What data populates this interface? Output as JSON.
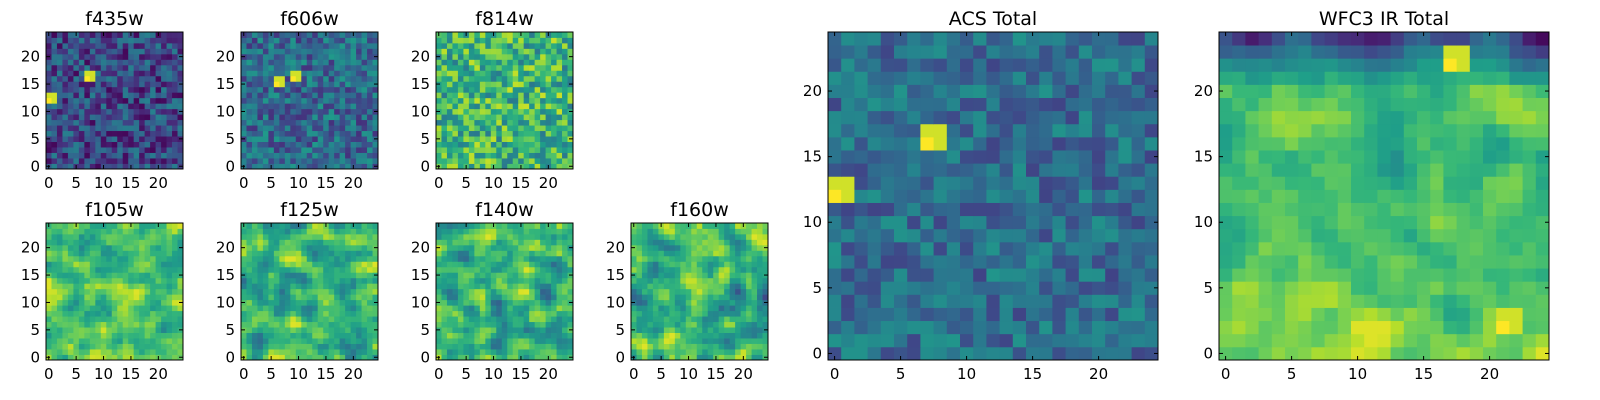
{
  "chart_data": [
    {
      "type": "heatmap",
      "title": "f435w",
      "colormap": "viridis",
      "extent": [
        -0.5,
        24.5,
        -0.5,
        24.5
      ],
      "xticks": [
        0,
        5,
        10,
        15,
        20
      ],
      "yticks": [
        0,
        5,
        10,
        15,
        20
      ],
      "features": [
        {
          "label": "bright source",
          "x": 7,
          "y": 16,
          "value": 1.0
        },
        {
          "label": "bright source",
          "x": 0,
          "y": 12,
          "value": 1.0
        }
      ]
    },
    {
      "type": "heatmap",
      "title": "f606w",
      "colormap": "viridis",
      "extent": [
        -0.5,
        24.5,
        -0.5,
        24.5
      ],
      "xticks": [
        0,
        5,
        10,
        15,
        20
      ],
      "yticks": [
        0,
        5,
        10,
        15,
        20
      ],
      "features": [
        {
          "label": "bright source",
          "x": 6,
          "y": 15,
          "value": 1.0
        },
        {
          "label": "bright source",
          "x": 9,
          "y": 16,
          "value": 1.0
        }
      ]
    },
    {
      "type": "heatmap",
      "title": "f814w",
      "colormap": "viridis",
      "extent": [
        -0.5,
        24.5,
        -0.5,
        24.5
      ],
      "xticks": [
        0,
        5,
        10,
        15,
        20
      ],
      "yticks": [
        0,
        5,
        10,
        15,
        20
      ]
    },
    {
      "type": "heatmap",
      "title": "f105w",
      "colormap": "viridis",
      "extent": [
        -0.5,
        24.5,
        -0.5,
        24.5
      ],
      "xticks": [
        0,
        5,
        10,
        15,
        20
      ],
      "yticks": [
        0,
        5,
        10,
        15,
        20
      ]
    },
    {
      "type": "heatmap",
      "title": "f125w",
      "colormap": "viridis",
      "extent": [
        -0.5,
        24.5,
        -0.5,
        24.5
      ],
      "xticks": [
        0,
        5,
        10,
        15,
        20
      ],
      "yticks": [
        0,
        5,
        10,
        15,
        20
      ]
    },
    {
      "type": "heatmap",
      "title": "f140w",
      "colormap": "viridis",
      "extent": [
        -0.5,
        24.5,
        -0.5,
        24.5
      ],
      "xticks": [
        0,
        5,
        10,
        15,
        20
      ],
      "yticks": [
        0,
        5,
        10,
        15,
        20
      ]
    },
    {
      "type": "heatmap",
      "title": "f160w",
      "colormap": "viridis",
      "extent": [
        -0.5,
        24.5,
        -0.5,
        24.5
      ],
      "xticks": [
        0,
        5,
        10,
        15,
        20
      ],
      "yticks": [
        0,
        5,
        10,
        15,
        20
      ]
    },
    {
      "type": "heatmap",
      "title": "ACS Total",
      "colormap": "viridis",
      "extent": [
        -0.5,
        24.5,
        -0.5,
        24.5
      ],
      "xticks": [
        0,
        5,
        10,
        15,
        20
      ],
      "yticks": [
        0,
        5,
        10,
        15,
        20
      ],
      "features": [
        {
          "label": "bright source",
          "x": 7,
          "y": 16,
          "value": 1.0
        },
        {
          "label": "bright source",
          "x": 0,
          "y": 12,
          "value": 1.0
        }
      ]
    },
    {
      "type": "heatmap",
      "title": "WFC3 IR Total",
      "colormap": "viridis",
      "extent": [
        -0.5,
        24.5,
        -0.5,
        24.5
      ],
      "xticks": [
        0,
        5,
        10,
        15,
        20
      ],
      "yticks": [
        0,
        5,
        10,
        15,
        20
      ],
      "features": [
        {
          "label": "bright source",
          "x": 17,
          "y": 22,
          "value": 1.0
        },
        {
          "label": "bright source",
          "x": 21,
          "y": 2,
          "value": 1.0
        }
      ]
    }
  ]
}
